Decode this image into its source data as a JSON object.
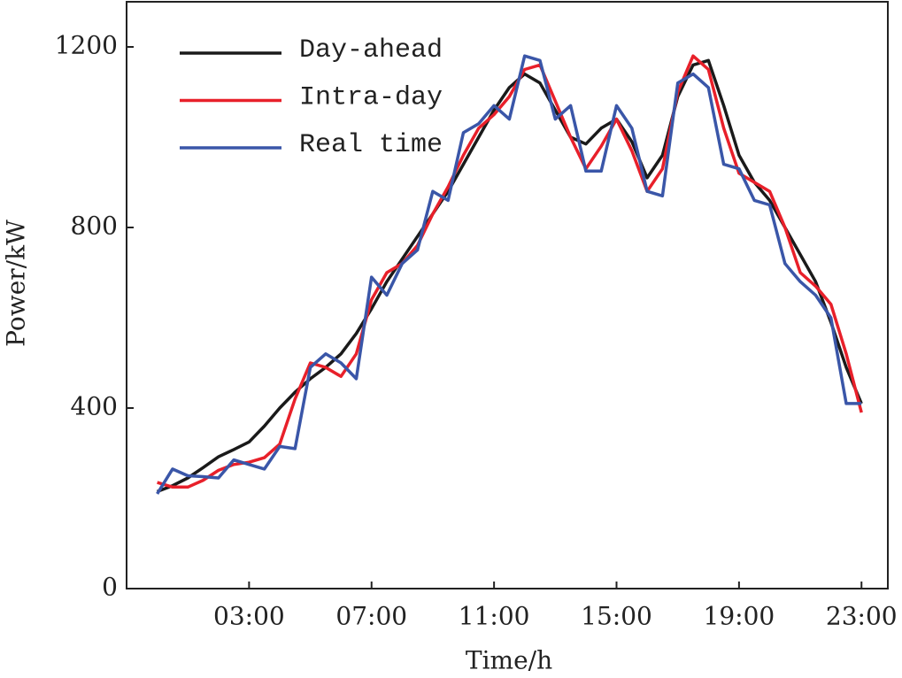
{
  "chart_data": {
    "type": "line",
    "xlabel": "Time/h",
    "ylabel": "Power/kW",
    "x": [
      0,
      0.5,
      1,
      1.5,
      2,
      2.5,
      3,
      3.5,
      4,
      4.5,
      5,
      5.5,
      6,
      6.5,
      7,
      7.5,
      8,
      8.5,
      9,
      9.5,
      10,
      10.5,
      11,
      11.5,
      12,
      12.5,
      13,
      13.5,
      14,
      14.5,
      15,
      15.5,
      16,
      16.5,
      17,
      17.5,
      18,
      18.5,
      19,
      19.5,
      20,
      20.5,
      21,
      21.5,
      22,
      22.5,
      23
    ],
    "series": [
      {
        "name": "Day-ahead",
        "color": "#1a1a1a",
        "values": [
          215,
          228,
          245,
          268,
          292,
          308,
          325,
          360,
          400,
          435,
          465,
          490,
          520,
          565,
          620,
          680,
          730,
          780,
          830,
          880,
          940,
          1000,
          1060,
          1110,
          1140,
          1120,
          1060,
          1000,
          985,
          1020,
          1040,
          990,
          910,
          960,
          1090,
          1160,
          1170,
          1070,
          960,
          900,
          860,
          800,
          740,
          680,
          590,
          490,
          410
        ]
      },
      {
        "name": "Intra-day",
        "color": "#e8202a",
        "values": [
          235,
          225,
          225,
          240,
          262,
          275,
          280,
          290,
          320,
          420,
          500,
          490,
          470,
          520,
          640,
          700,
          720,
          760,
          830,
          890,
          960,
          1020,
          1050,
          1090,
          1150,
          1160,
          1080,
          1000,
          930,
          980,
          1040,
          970,
          880,
          930,
          1100,
          1180,
          1150,
          1020,
          920,
          900,
          880,
          800,
          700,
          670,
          630,
          520,
          390
        ]
      },
      {
        "name": "Real time",
        "color": "#3a56a8",
        "values": [
          210,
          265,
          250,
          248,
          245,
          285,
          275,
          265,
          315,
          310,
          490,
          520,
          500,
          465,
          690,
          650,
          720,
          750,
          880,
          860,
          1010,
          1030,
          1070,
          1040,
          1180,
          1170,
          1040,
          1070,
          925,
          925,
          1070,
          1020,
          880,
          870,
          1120,
          1140,
          1110,
          940,
          930,
          860,
          850,
          720,
          680,
          650,
          600,
          410,
          410
        ]
      }
    ],
    "xlim": [
      -1,
      23.86
    ],
    "ylim": [
      0,
      1300
    ],
    "xticks": [
      {
        "value": 3,
        "label": "03:00"
      },
      {
        "value": 7,
        "label": "07:00"
      },
      {
        "value": 11,
        "label": "11:00"
      },
      {
        "value": 15,
        "label": "15:00"
      },
      {
        "value": 19,
        "label": "19:00"
      },
      {
        "value": 23,
        "label": "23:00"
      }
    ],
    "yticks": [
      0,
      400,
      800,
      1200
    ],
    "legend": "upper left",
    "grid": false
  }
}
